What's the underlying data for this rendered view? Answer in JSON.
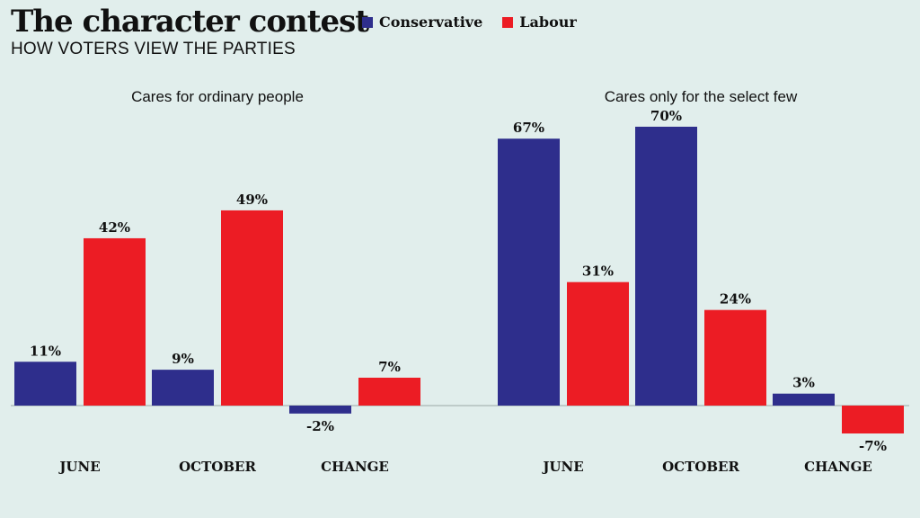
{
  "header": {
    "title": "The character contest",
    "subtitle": "HOW VOTERS VIEW THE PARTIES"
  },
  "legend": [
    {
      "name": "Conservative",
      "color": "#2e2e8c"
    },
    {
      "name": "Labour",
      "color": "#ec1c24"
    }
  ],
  "chart_data": [
    {
      "type": "bar",
      "title": "Cares for ordinary people",
      "categories": [
        "JUNE",
        "OCTOBER",
        "CHANGE"
      ],
      "series": [
        {
          "name": "Conservative",
          "values": [
            11,
            9,
            -2
          ],
          "labels": [
            "11%",
            "9%",
            "-2%"
          ]
        },
        {
          "name": "Labour",
          "values": [
            42,
            49,
            7
          ],
          "labels": [
            "42%",
            "49%",
            "7%"
          ]
        }
      ]
    },
    {
      "type": "bar",
      "title": "Cares only for the select few",
      "categories": [
        "JUNE",
        "OCTOBER",
        "CHANGE"
      ],
      "series": [
        {
          "name": "Conservative",
          "values": [
            67,
            70,
            3
          ],
          "labels": [
            "67%",
            "70%",
            "3%"
          ]
        },
        {
          "name": "Labour",
          "values": [
            31,
            24,
            -7
          ],
          "labels": [
            "31%",
            "24%",
            "-7%"
          ]
        }
      ]
    }
  ]
}
